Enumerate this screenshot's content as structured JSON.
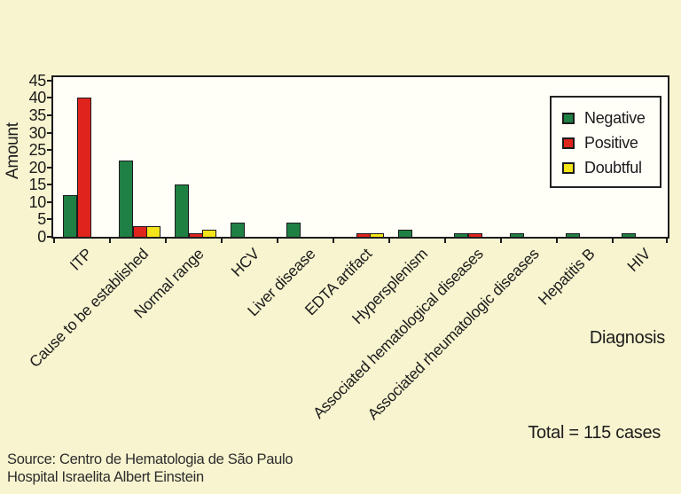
{
  "figure": {
    "background_color": "#f7f4cf",
    "plot_background_color": "#fffef7"
  },
  "chart_data": {
    "type": "bar",
    "title": "",
    "xlabel": "Diagnosis",
    "ylabel": "Amount",
    "ylim": [
      0,
      45
    ],
    "yticks": [
      0,
      5,
      10,
      15,
      20,
      25,
      30,
      35,
      40,
      45
    ],
    "grid": false,
    "legend_position": "top-right",
    "categories": [
      "ITP",
      "Cause to be established",
      "Normal range",
      "HCV",
      "Liver disease",
      "EDTA artifact",
      "Hypersplenism",
      "Associated hematological diseases",
      "Associated rheumatologic diseases",
      "Hepatitis B",
      "HIV"
    ],
    "series": [
      {
        "name": "Negative",
        "color": "#1f8044",
        "values": [
          12,
          22,
          15,
          4,
          4,
          0,
          2,
          1,
          1,
          1,
          1
        ]
      },
      {
        "name": "Positive",
        "color": "#df241d",
        "values": [
          40,
          3,
          1,
          0,
          0,
          1,
          0,
          1,
          0,
          0,
          0
        ]
      },
      {
        "name": "Doubtful",
        "color": "#f3e51a",
        "values": [
          0,
          3,
          2,
          0,
          0,
          1,
          0,
          0,
          0,
          0,
          0
        ]
      }
    ]
  },
  "annotations": {
    "total_label": "Total = 115 cases",
    "source_line1": "Source: Centro de Hematologia de São Paulo",
    "source_line2": "Hospital Israelita Albert Einstein"
  }
}
